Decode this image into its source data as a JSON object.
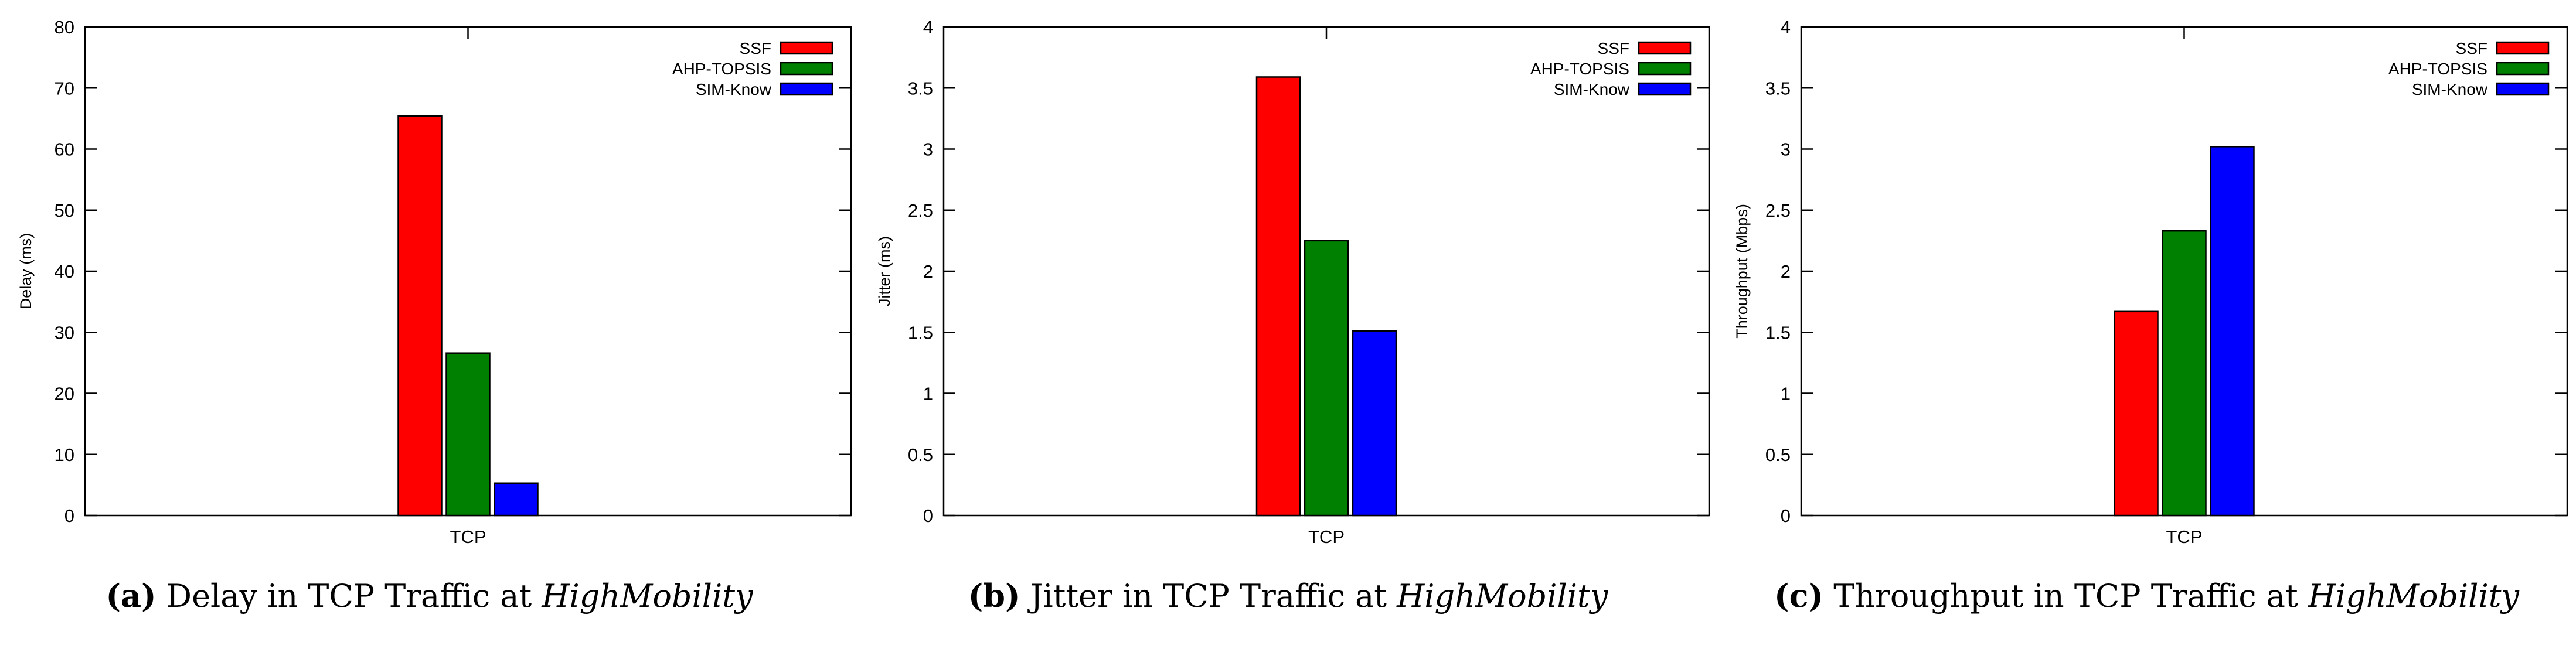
{
  "chart_data": [
    {
      "type": "bar",
      "categories": [
        "TCP"
      ],
      "series": [
        {
          "name": "SSF",
          "values": [
            65.4
          ],
          "color": "#ff0000"
        },
        {
          "name": "AHP-TOPSIS",
          "values": [
            26.6
          ],
          "color": "#008000"
        },
        {
          "name": "SIM-Know",
          "values": [
            5.3
          ],
          "color": "#0000ff"
        }
      ],
      "ylabel": "Delay (ms)",
      "xlabel": "",
      "ylim": [
        0,
        80
      ],
      "yticks": [
        0,
        10,
        20,
        30,
        40,
        50,
        60,
        70,
        80
      ],
      "ytick_labels": [
        "0",
        "10",
        "20",
        "30",
        "40",
        "50",
        "60",
        "70",
        "80"
      ],
      "legend_position": "top-right",
      "caption": {
        "letter": "(a)",
        "text": "Delay in TCP Traffic at",
        "emphasis": "HighMobility"
      }
    },
    {
      "type": "bar",
      "categories": [
        "TCP"
      ],
      "series": [
        {
          "name": "SSF",
          "values": [
            3.59
          ],
          "color": "#ff0000"
        },
        {
          "name": "AHP-TOPSIS",
          "values": [
            2.25
          ],
          "color": "#008000"
        },
        {
          "name": "SIM-Know",
          "values": [
            1.51
          ],
          "color": "#0000ff"
        }
      ],
      "ylabel": "Jitter (ms)",
      "xlabel": "",
      "ylim": [
        0,
        4
      ],
      "yticks": [
        0,
        0.5,
        1,
        1.5,
        2,
        2.5,
        3,
        3.5,
        4
      ],
      "ytick_labels": [
        "0",
        "0.5",
        "1",
        "1.5",
        "2",
        "2.5",
        "3",
        "3.5",
        "4"
      ],
      "legend_position": "top-right",
      "caption": {
        "letter": "(b)",
        "text": "Jitter in TCP Traffic at",
        "emphasis": "HighMobility"
      }
    },
    {
      "type": "bar",
      "categories": [
        "TCP"
      ],
      "series": [
        {
          "name": "SSF",
          "values": [
            1.67
          ],
          "color": "#ff0000"
        },
        {
          "name": "AHP-TOPSIS",
          "values": [
            2.33
          ],
          "color": "#008000"
        },
        {
          "name": "SIM-Know",
          "values": [
            3.02
          ],
          "color": "#0000ff"
        }
      ],
      "ylabel": "Throughput (Mbps)",
      "xlabel": "",
      "ylim": [
        0,
        4
      ],
      "yticks": [
        0,
        0.5,
        1,
        1.5,
        2,
        2.5,
        3,
        3.5,
        4
      ],
      "ytick_labels": [
        "0",
        "0.5",
        "1",
        "1.5",
        "2",
        "2.5",
        "3",
        "3.5",
        "4"
      ],
      "legend_position": "top-right",
      "caption": {
        "letter": "(c)",
        "text": "Throughput in TCP Traffic at",
        "emphasis": "HighMobility"
      }
    }
  ]
}
